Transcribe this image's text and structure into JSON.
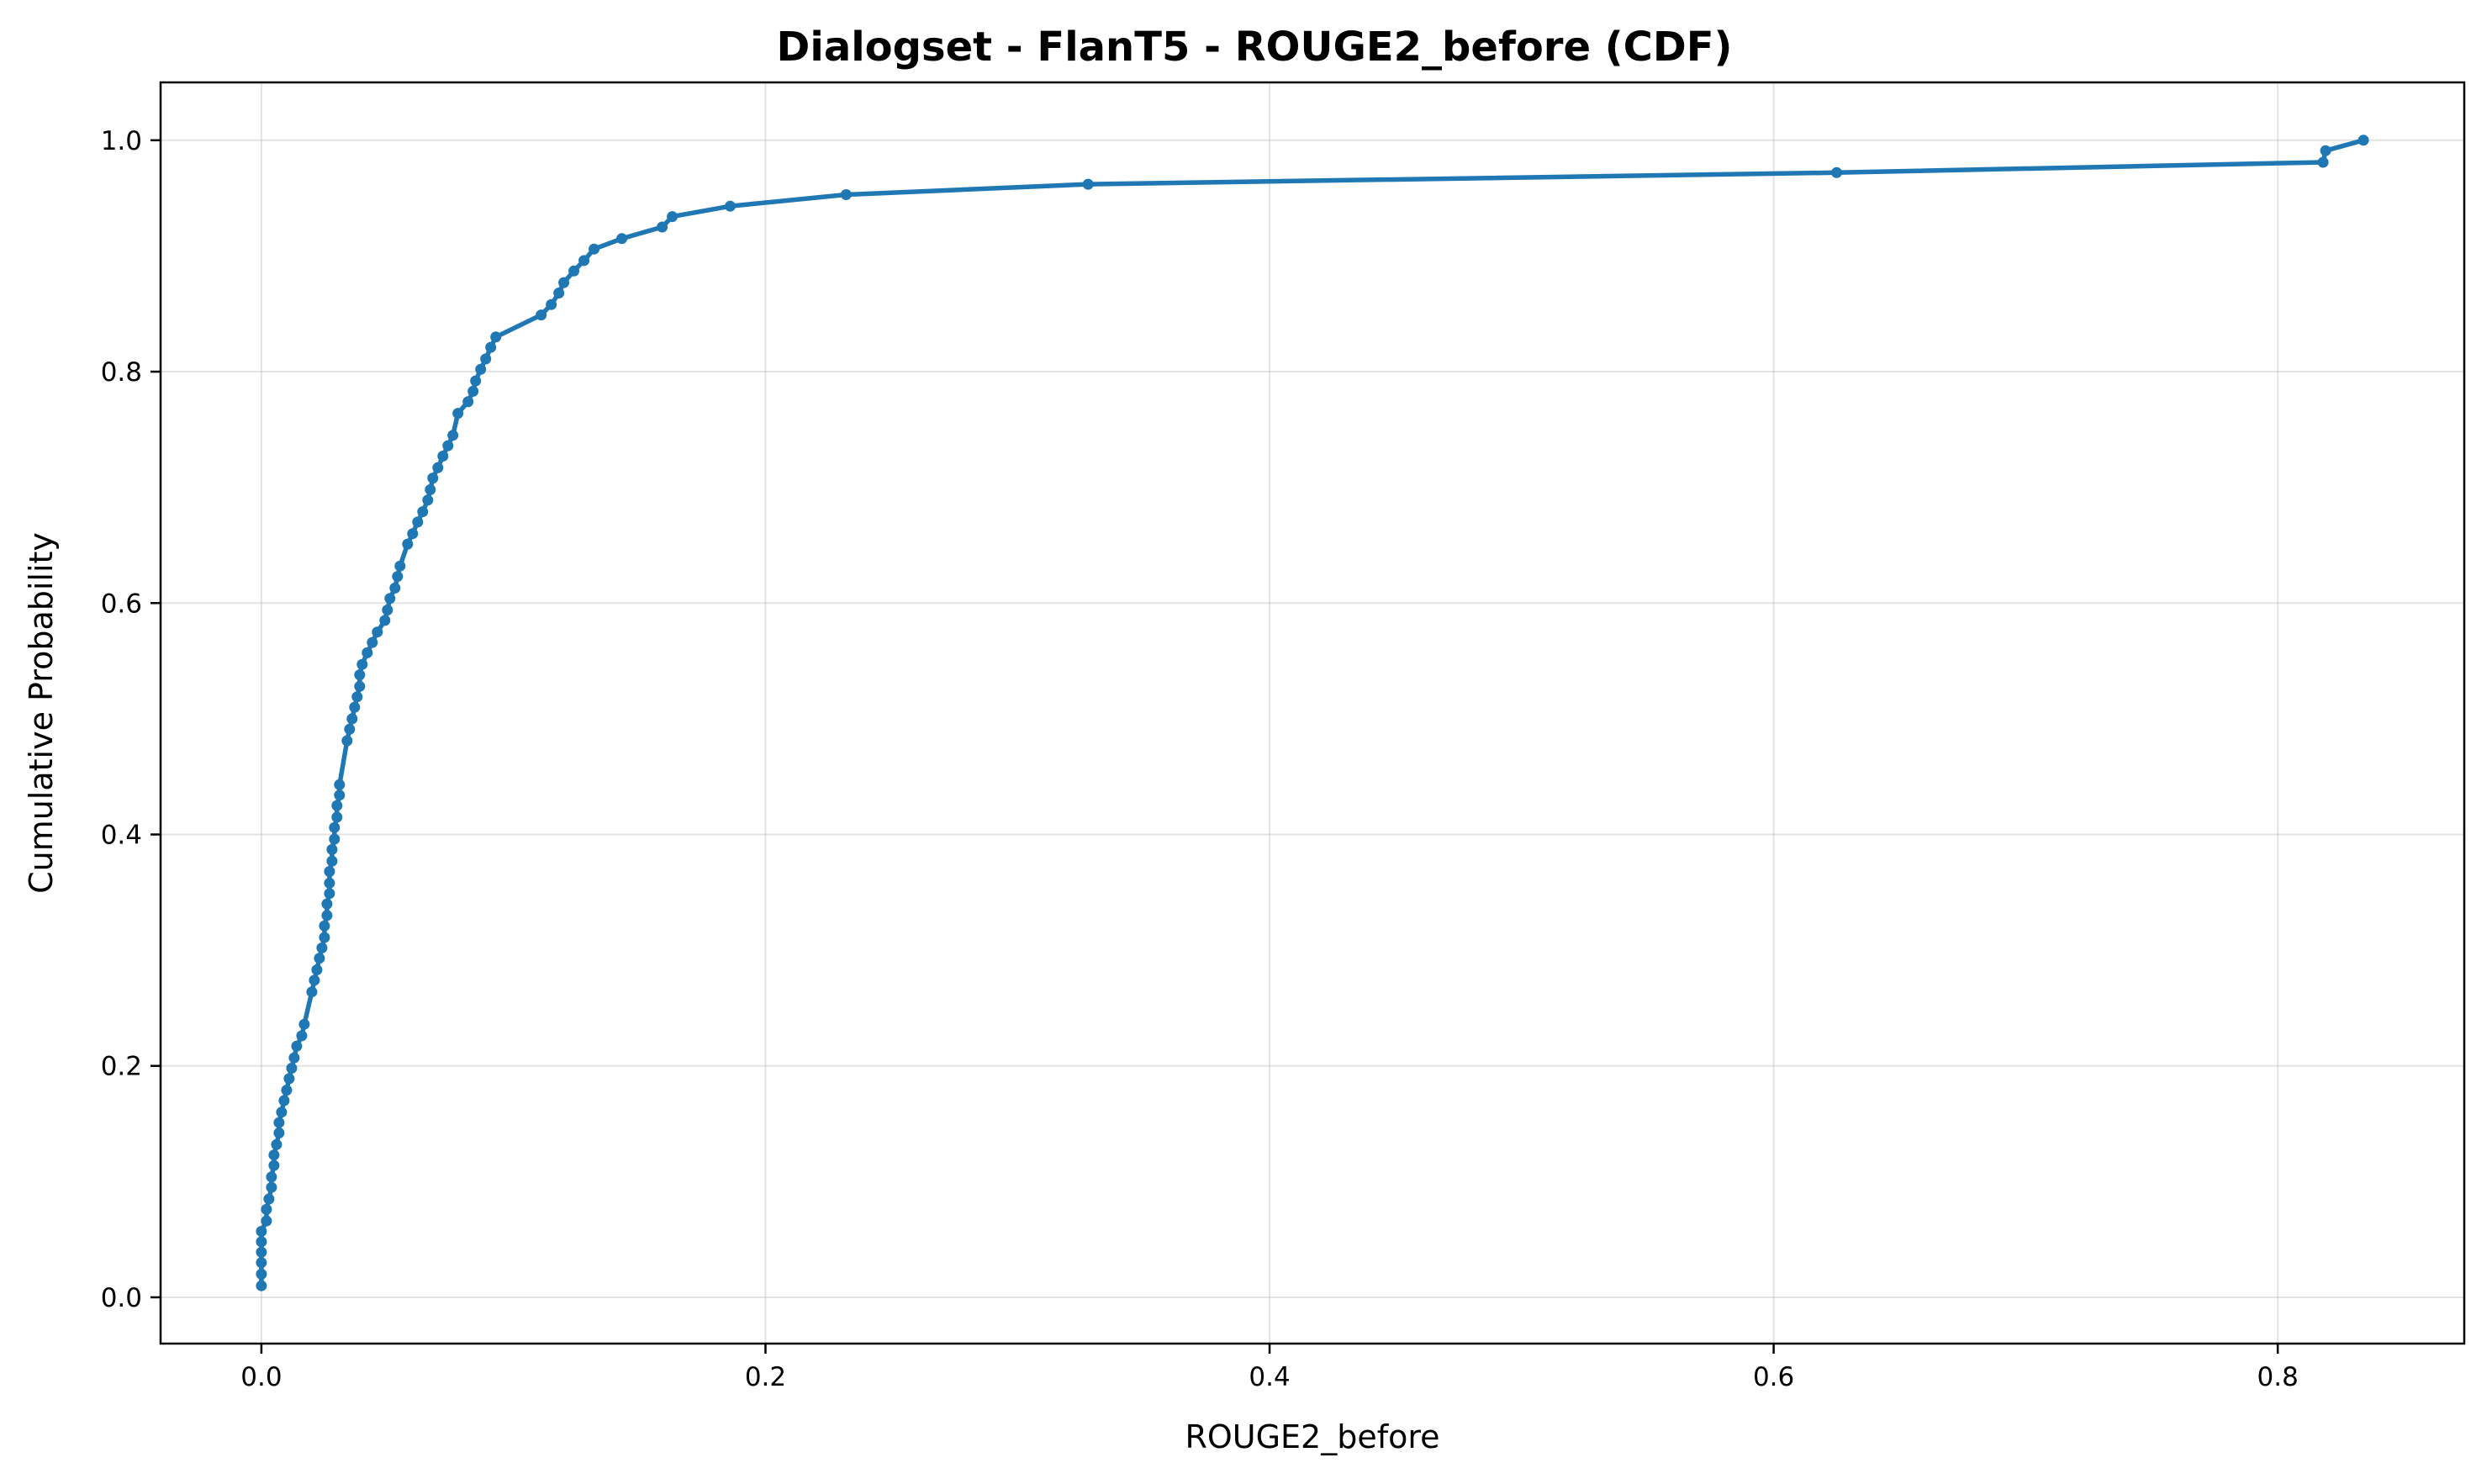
{
  "chart_data": {
    "type": "line",
    "title": "Dialogset - FlanT5 - ROUGE2_before (CDF)",
    "xlabel": "ROUGE2_before",
    "ylabel": "Cumulative Probability",
    "xlim": [
      -0.04,
      0.874
    ],
    "ylim": [
      -0.04,
      1.05
    ],
    "xticks": [
      "0.0",
      "0.2",
      "0.4",
      "0.6",
      "0.8"
    ],
    "yticks": [
      "0.0",
      "0.2",
      "0.4",
      "0.6",
      "0.8",
      "1.0"
    ],
    "grid": true,
    "color": "#1f77b4",
    "series": [
      {
        "x": [
          0.0,
          0.0,
          0.0,
          0.0,
          0.0,
          0.0,
          0.002,
          0.002,
          0.003,
          0.004,
          0.004,
          0.005,
          0.005,
          0.006,
          0.007,
          0.007,
          0.008,
          0.009,
          0.01,
          0.011,
          0.012,
          0.013,
          0.014,
          0.016,
          0.017,
          0.02,
          0.021,
          0.022,
          0.023,
          0.024,
          0.025,
          0.025,
          0.026,
          0.026,
          0.027,
          0.027,
          0.027,
          0.028,
          0.028,
          0.029,
          0.029,
          0.03,
          0.03,
          0.031,
          0.031,
          0.034,
          0.035,
          0.036,
          0.037,
          0.038,
          0.039,
          0.039,
          0.04,
          0.042,
          0.044,
          0.046,
          0.049,
          0.05,
          0.051,
          0.053,
          0.054,
          0.055,
          0.058,
          0.06,
          0.062,
          0.064,
          0.066,
          0.067,
          0.068,
          0.07,
          0.072,
          0.074,
          0.076,
          0.078,
          0.082,
          0.084,
          0.085,
          0.087,
          0.089,
          0.091,
          0.093,
          0.111,
          0.115,
          0.118,
          0.12,
          0.124,
          0.128,
          0.132,
          0.143,
          0.159,
          0.163,
          0.186,
          0.232,
          0.328,
          0.625,
          0.818,
          0.819,
          0.834
        ],
        "y": [
          0.01,
          0.02,
          0.03,
          0.039,
          0.048,
          0.057,
          0.066,
          0.076,
          0.085,
          0.095,
          0.104,
          0.114,
          0.123,
          0.132,
          0.142,
          0.151,
          0.16,
          0.17,
          0.179,
          0.189,
          0.198,
          0.207,
          0.217,
          0.226,
          0.236,
          0.264,
          0.274,
          0.283,
          0.293,
          0.302,
          0.311,
          0.321,
          0.33,
          0.34,
          0.349,
          0.358,
          0.368,
          0.377,
          0.387,
          0.396,
          0.406,
          0.415,
          0.425,
          0.434,
          0.443,
          0.481,
          0.491,
          0.5,
          0.51,
          0.519,
          0.528,
          0.538,
          0.547,
          0.557,
          0.566,
          0.575,
          0.585,
          0.594,
          0.604,
          0.613,
          0.623,
          0.632,
          0.651,
          0.66,
          0.67,
          0.679,
          0.689,
          0.698,
          0.708,
          0.717,
          0.727,
          0.736,
          0.745,
          0.764,
          0.774,
          0.783,
          0.792,
          0.802,
          0.811,
          0.821,
          0.83,
          0.849,
          0.858,
          0.868,
          0.877,
          0.887,
          0.896,
          0.906,
          0.915,
          0.925,
          0.934,
          0.943,
          0.953,
          0.962,
          0.972,
          0.981,
          0.991,
          1.0
        ]
      }
    ]
  }
}
